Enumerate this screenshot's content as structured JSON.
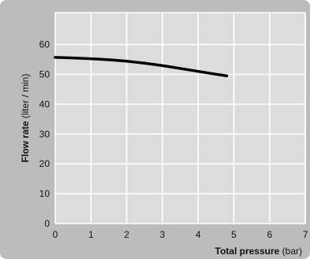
{
  "chart_data": {
    "type": "line",
    "title": "",
    "xlabel_bold": "Total pressure",
    "xlabel_unit": "(bar)",
    "ylabel_bold": "Flow rate",
    "ylabel_unit": "(liter / min)",
    "xlim": [
      0,
      7
    ],
    "ylim": [
      0,
      70
    ],
    "xticks": [
      0,
      1,
      2,
      3,
      4,
      5,
      6,
      7
    ],
    "yticks": [
      0,
      10,
      20,
      30,
      40,
      50,
      60
    ],
    "grid": true,
    "series": [
      {
        "x": [
          0,
          1,
          2,
          3,
          4,
          4.8
        ],
        "y": [
          55.7,
          55.3,
          54.5,
          53.0,
          51.0,
          49.5
        ]
      }
    ],
    "colors": {
      "background": "#bcbcbc",
      "plot": "#dcdcdc",
      "grid": "#ffffff",
      "line": "#000000"
    }
  }
}
